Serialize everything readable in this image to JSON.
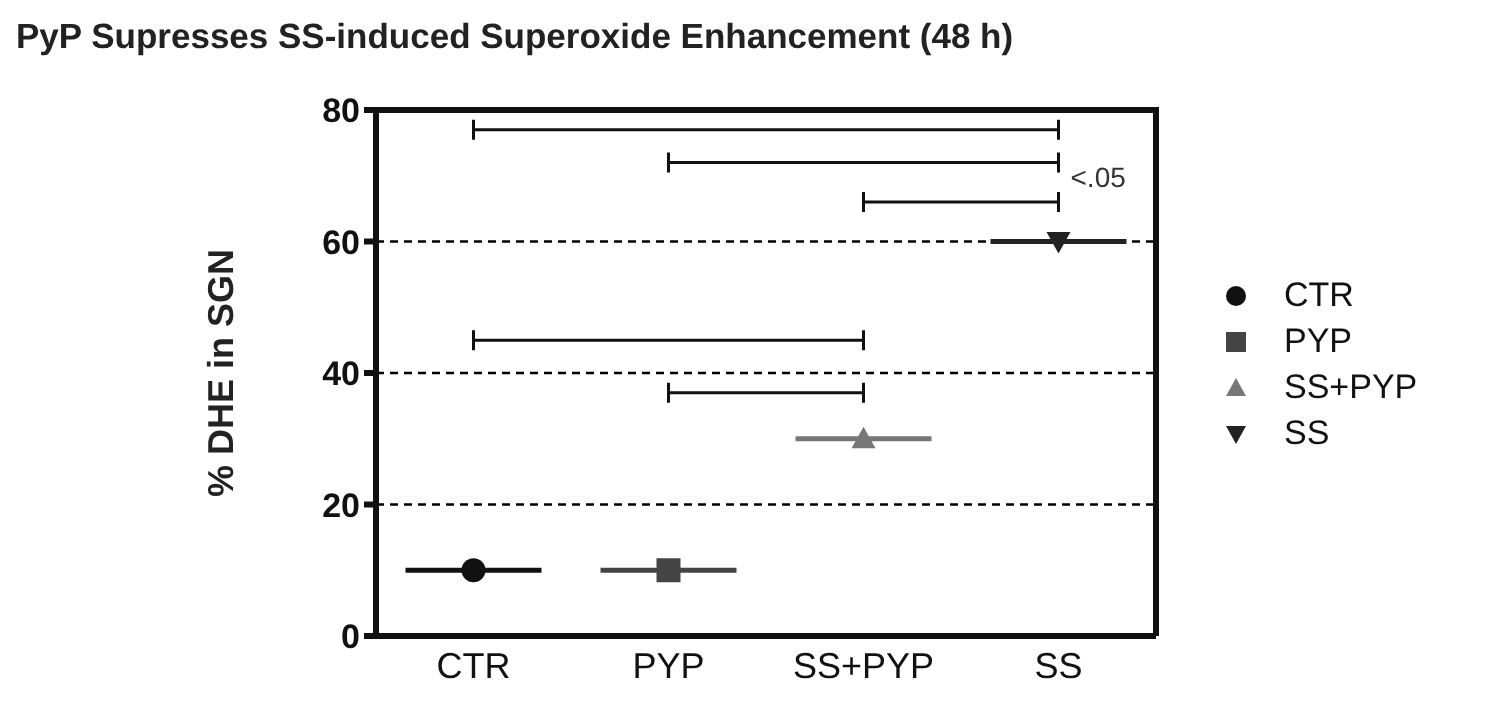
{
  "chart_data": {
    "type": "scatter",
    "title": "PyP Supresses SS-induced Superoxide Enhancement (48 h)",
    "ylabel": "% DHE in SGN",
    "categories": [
      "CTR",
      "PYP",
      "SS+PYP",
      "SS"
    ],
    "series": [
      {
        "name": "CTR",
        "color": "#111111",
        "marker": "circle",
        "x": [
          "CTR"
        ],
        "values": [
          10
        ]
      },
      {
        "name": "PYP",
        "color": "#444444",
        "marker": "square",
        "x": [
          "PYP"
        ],
        "values": [
          10
        ]
      },
      {
        "name": "SS+PYP",
        "color": "#777777",
        "marker": "triangle",
        "x": [
          "SS+PYP"
        ],
        "values": [
          30
        ]
      },
      {
        "name": "SS",
        "color": "#222222",
        "x": [
          "SS"
        ],
        "values": [
          60
        ]
      }
    ],
    "ylim": [
      0,
      80
    ],
    "yticks": [
      0,
      20,
      40,
      60,
      80
    ],
    "grid": "y",
    "legend": "right",
    "annotations": [
      "<.05"
    ]
  }
}
